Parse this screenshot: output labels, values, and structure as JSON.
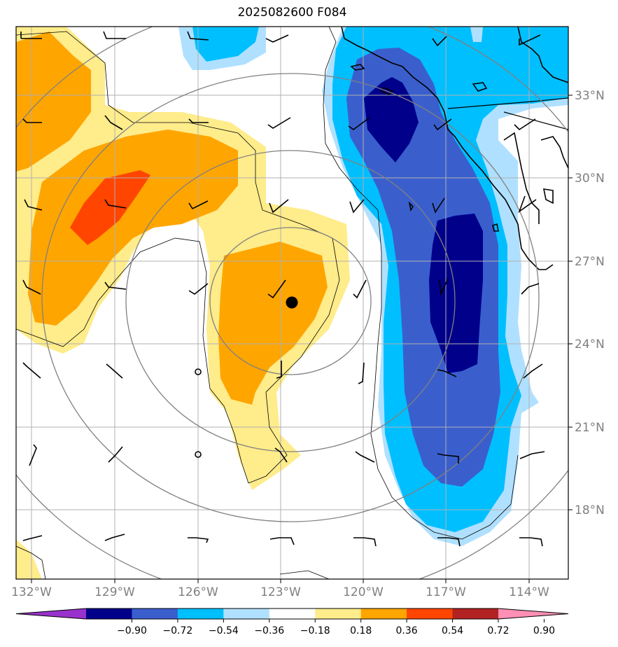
{
  "title": "2025082600 F084",
  "map": {
    "lon_labels": [
      "132°W",
      "129°W",
      "126°W",
      "123°W",
      "120°W",
      "117°W",
      "114°W"
    ],
    "lat_labels": [
      "33°N",
      "30°N",
      "27°N",
      "24°N",
      "21°N",
      "18°N"
    ],
    "center_marker": {
      "lon": -122.6,
      "lat": 25.5
    }
  },
  "colorbar": {
    "labels": [
      "−0.90",
      "−0.72",
      "−0.54",
      "−0.36",
      "−0.18",
      "0.18",
      "0.36",
      "0.54",
      "0.72",
      "0.90"
    ],
    "colors": [
      "#9932cc",
      "#00008b",
      "#3a5fcd",
      "#00bfff",
      "#b0e0ff",
      "#ffffff",
      "#ffec8b",
      "#ffa500",
      "#ff4500",
      "#b22222",
      "#ff8fb4"
    ]
  },
  "colors": {
    "dark_navy": "#00008b",
    "royal_blue": "#3a5fcd",
    "sky_blue": "#00bfff",
    "light_blue": "#b0e0ff",
    "light_yellow": "#ffec8b",
    "orange": "#ffa500",
    "red_orange": "#ff4500",
    "grid": "#b0b0b0",
    "ring": "#808080"
  }
}
